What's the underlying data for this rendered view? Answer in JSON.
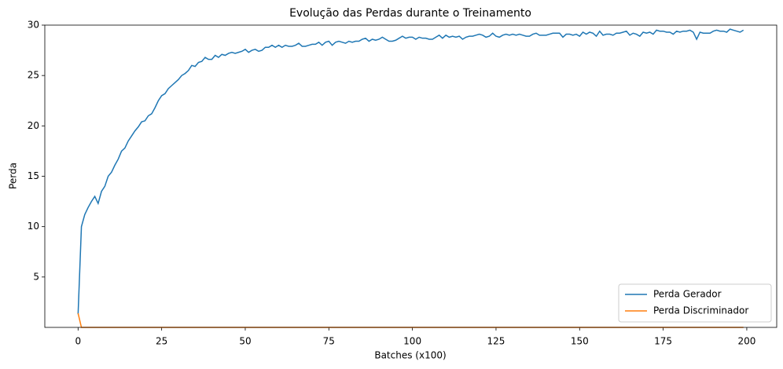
{
  "chart_data": {
    "type": "line",
    "title": "Evolução das Perdas durante o Treinamento",
    "x_label": "Batches (x100)",
    "y_label": "Perda",
    "x": [
      0,
      1,
      2,
      3,
      4,
      5,
      6,
      7,
      8,
      9,
      10,
      11,
      12,
      13,
      14,
      15,
      16,
      17,
      18,
      19,
      20,
      21,
      22,
      23,
      24,
      25,
      26,
      27,
      28,
      29,
      30,
      31,
      32,
      33,
      34,
      35,
      36,
      37,
      38,
      39,
      40,
      41,
      42,
      43,
      44,
      45,
      46,
      47,
      48,
      49,
      50,
      51,
      52,
      53,
      54,
      55,
      56,
      57,
      58,
      59,
      60,
      61,
      62,
      63,
      64,
      65,
      66,
      67,
      68,
      69,
      70,
      71,
      72,
      73,
      74,
      75,
      76,
      77,
      78,
      79,
      80,
      81,
      82,
      83,
      84,
      85,
      86,
      87,
      88,
      89,
      90,
      91,
      92,
      93,
      94,
      95,
      96,
      97,
      98,
      99,
      100,
      101,
      102,
      103,
      104,
      105,
      106,
      107,
      108,
      109,
      110,
      111,
      112,
      113,
      114,
      115,
      116,
      117,
      118,
      119,
      120,
      121,
      122,
      123,
      124,
      125,
      126,
      127,
      128,
      129,
      130,
      131,
      132,
      133,
      134,
      135,
      136,
      137,
      138,
      139,
      140,
      141,
      142,
      143,
      144,
      145,
      146,
      147,
      148,
      149,
      150,
      151,
      152,
      153,
      154,
      155,
      156,
      157,
      158,
      159,
      160,
      161,
      162,
      163,
      164,
      165,
      166,
      167,
      168,
      169,
      170,
      171,
      172,
      173,
      174,
      175,
      176,
      177,
      178,
      179,
      180,
      181,
      182,
      183,
      184,
      185,
      186,
      187,
      188,
      189,
      190,
      191,
      192,
      193,
      194,
      195,
      196,
      197,
      198,
      199
    ],
    "series": [
      {
        "name": "Perda Gerador",
        "color": "#1f77b4",
        "values": [
          1.3,
          10.0,
          11.2,
          11.9,
          12.5,
          13.0,
          12.3,
          13.5,
          14.0,
          15.0,
          15.4,
          16.1,
          16.7,
          17.5,
          17.8,
          18.5,
          19.0,
          19.5,
          19.9,
          20.4,
          20.5,
          21.0,
          21.2,
          21.8,
          22.5,
          23.0,
          23.2,
          23.7,
          24.0,
          24.3,
          24.6,
          25.0,
          25.2,
          25.5,
          26.0,
          25.9,
          26.3,
          26.4,
          26.8,
          26.6,
          26.6,
          27.0,
          26.8,
          27.1,
          27.0,
          27.2,
          27.3,
          27.2,
          27.3,
          27.4,
          27.6,
          27.3,
          27.5,
          27.6,
          27.4,
          27.5,
          27.8,
          27.8,
          28.0,
          27.8,
          28.0,
          27.8,
          28.0,
          27.9,
          27.9,
          28.0,
          28.2,
          27.9,
          27.9,
          28.0,
          28.1,
          28.1,
          28.3,
          28.0,
          28.3,
          28.4,
          28.0,
          28.3,
          28.4,
          28.3,
          28.2,
          28.4,
          28.3,
          28.4,
          28.4,
          28.6,
          28.7,
          28.4,
          28.6,
          28.5,
          28.6,
          28.8,
          28.6,
          28.4,
          28.4,
          28.5,
          28.7,
          28.9,
          28.7,
          28.8,
          28.8,
          28.6,
          28.8,
          28.7,
          28.7,
          28.6,
          28.6,
          28.8,
          29.0,
          28.7,
          29.0,
          28.8,
          28.9,
          28.8,
          28.9,
          28.6,
          28.8,
          28.9,
          28.9,
          29.0,
          29.1,
          29.0,
          28.8,
          28.9,
          29.2,
          28.9,
          28.8,
          29.0,
          29.1,
          29.0,
          29.1,
          29.0,
          29.1,
          29.0,
          28.9,
          28.9,
          29.1,
          29.2,
          29.0,
          29.0,
          29.0,
          29.1,
          29.2,
          29.2,
          29.2,
          28.8,
          29.1,
          29.1,
          29.0,
          29.1,
          28.9,
          29.3,
          29.1,
          29.3,
          29.2,
          28.9,
          29.4,
          29.0,
          29.1,
          29.1,
          29.0,
          29.2,
          29.2,
          29.3,
          29.4,
          29.0,
          29.2,
          29.1,
          28.9,
          29.3,
          29.2,
          29.3,
          29.1,
          29.5,
          29.4,
          29.4,
          29.3,
          29.3,
          29.1,
          29.4,
          29.3,
          29.4,
          29.4,
          29.5,
          29.3,
          28.6,
          29.3,
          29.2,
          29.2,
          29.2,
          29.4,
          29.5,
          29.4,
          29.4,
          29.3,
          29.6,
          29.5,
          29.4,
          29.3,
          29.5
        ]
      },
      {
        "name": "Perda Discriminador",
        "color": "#ff7f0e",
        "values": [
          1.4,
          0,
          0,
          0,
          0,
          0,
          0,
          0,
          0,
          0,
          0,
          0,
          0,
          0,
          0,
          0,
          0,
          0,
          0,
          0,
          0,
          0,
          0,
          0,
          0,
          0,
          0,
          0,
          0,
          0,
          0,
          0,
          0,
          0,
          0,
          0,
          0,
          0,
          0,
          0,
          0,
          0,
          0,
          0,
          0,
          0,
          0,
          0,
          0,
          0,
          0,
          0,
          0,
          0,
          0,
          0,
          0,
          0,
          0,
          0,
          0,
          0,
          0,
          0,
          0,
          0,
          0,
          0,
          0,
          0,
          0,
          0,
          0,
          0,
          0,
          0,
          0,
          0,
          0,
          0,
          0,
          0,
          0,
          0,
          0,
          0,
          0,
          0,
          0,
          0,
          0,
          0,
          0,
          0,
          0,
          0,
          0,
          0,
          0,
          0,
          0,
          0,
          0,
          0,
          0,
          0,
          0,
          0,
          0,
          0,
          0,
          0,
          0,
          0,
          0,
          0,
          0,
          0,
          0,
          0,
          0,
          0,
          0,
          0,
          0,
          0,
          0,
          0,
          0,
          0,
          0,
          0,
          0,
          0,
          0,
          0,
          0,
          0,
          0,
          0,
          0,
          0,
          0,
          0,
          0,
          0,
          0,
          0,
          0,
          0,
          0,
          0,
          0,
          0,
          0,
          0,
          0,
          0,
          0,
          0,
          0,
          0,
          0,
          0,
          0,
          0,
          0,
          0,
          0,
          0,
          0,
          0,
          0,
          0,
          0,
          0,
          0,
          0,
          0,
          0,
          0,
          0,
          0,
          0,
          0,
          0,
          0,
          0,
          0,
          0,
          0,
          0,
          0,
          0,
          0,
          0,
          0,
          0,
          0,
          0
        ]
      }
    ],
    "xlim": [
      -9.95,
      208.95
    ],
    "ylim": [
      0,
      30
    ],
    "xticks": [
      0,
      25,
      50,
      75,
      100,
      125,
      150,
      175,
      200
    ],
    "yticks": [
      5,
      10,
      15,
      20,
      25,
      30
    ],
    "legend": "lower right"
  }
}
